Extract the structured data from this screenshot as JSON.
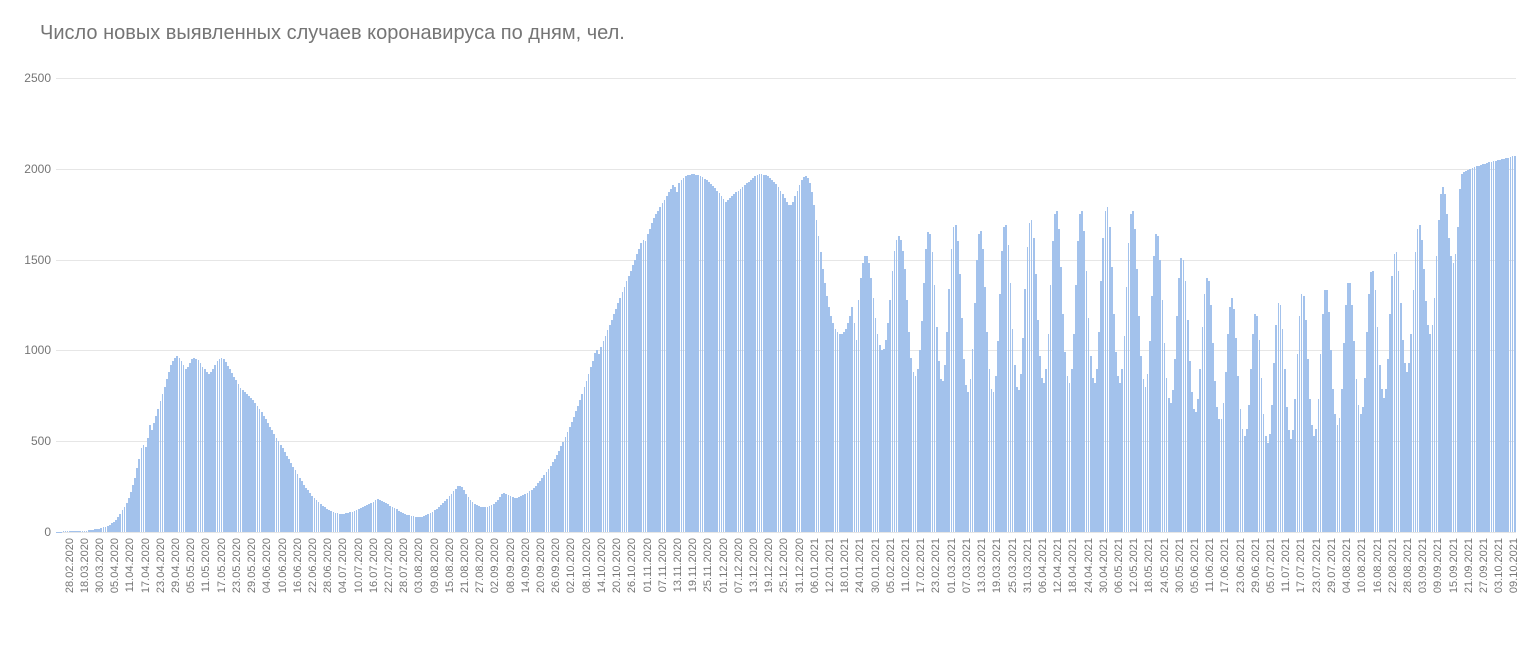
{
  "chart": {
    "type": "bar",
    "title": "Число новых выявленных случаев коронавируса по дням, чел.",
    "title_color": "#757575",
    "title_fontsize": 20,
    "background_color": "#ffffff",
    "grid_color": "#e6e6e6",
    "bar_color": "#a3c2ec",
    "axis_label_color": "#757575",
    "axis_fontsize": 12,
    "ylim": [
      0,
      2500
    ],
    "yticks": [
      0,
      500,
      1000,
      1500,
      2000,
      2500
    ],
    "x_tick_labels": [
      "28.02.2020",
      "18.03.2020",
      "30.03.2020",
      "05.04.2020",
      "11.04.2020",
      "17.04.2020",
      "23.04.2020",
      "29.04.2020",
      "05.05.2020",
      "11.05.2020",
      "17.05.2020",
      "23.05.2020",
      "29.05.2020",
      "04.06.2020",
      "10.06.2020",
      "16.06.2020",
      "22.06.2020",
      "28.06.2020",
      "04.07.2020",
      "10.07.2020",
      "16.07.2020",
      "22.07.2020",
      "28.07.2020",
      "03.08.2020",
      "09.08.2020",
      "15.08.2020",
      "21.08.2020",
      "27.08.2020",
      "02.09.2020",
      "08.09.2020",
      "14.09.2020",
      "20.09.2020",
      "26.09.2020",
      "02.10.2020",
      "08.10.2020",
      "14.10.2020",
      "20.10.2020",
      "26.10.2020",
      "01.11.2020",
      "07.11.2020",
      "13.11.2020",
      "19.11.2020",
      "25.11.2020",
      "01.12.2020",
      "07.12.2020",
      "13.12.2020",
      "19.12.2020",
      "25.12.2020",
      "31.12.2020",
      "06.01.2021",
      "12.01.2021",
      "18.01.2021",
      "24.01.2021",
      "30.01.2021",
      "05.02.2021",
      "11.02.2021",
      "17.02.2021",
      "23.02.2021",
      "01.03.2021",
      "07.03.2021",
      "13.03.2021",
      "19.03.2021",
      "25.03.2021",
      "31.03.2021",
      "06.04.2021",
      "12.04.2021",
      "18.04.2021",
      "24.04.2021",
      "30.04.2021",
      "06.05.2021",
      "12.05.2021",
      "18.05.2021",
      "24.05.2021",
      "30.05.2021",
      "05.06.2021",
      "11.06.2021",
      "17.06.2021",
      "23.06.2021",
      "29.06.2021",
      "05.07.2021",
      "11.07.2021",
      "17.07.2021",
      "23.07.2021",
      "29.07.2021",
      "04.08.2021",
      "10.08.2021",
      "16.08.2021",
      "22.08.2021",
      "28.08.2021",
      "03.09.2021",
      "09.09.2021",
      "15.09.2021",
      "21.09.2021",
      "27.09.2021",
      "03.10.2021",
      "09.10.2021"
    ],
    "values": [
      2,
      2,
      2,
      3,
      3,
      3,
      4,
      4,
      5,
      5,
      6,
      6,
      7,
      8,
      8,
      9,
      10,
      12,
      15,
      15,
      18,
      20,
      25,
      30,
      35,
      40,
      48,
      55,
      65,
      80,
      100,
      120,
      140,
      160,
      190,
      220,
      260,
      300,
      350,
      400,
      460,
      480,
      470,
      520,
      590,
      560,
      600,
      640,
      680,
      720,
      760,
      800,
      840,
      880,
      920,
      940,
      960,
      970,
      960,
      940,
      920,
      900,
      910,
      930,
      950,
      960,
      955,
      945,
      930,
      910,
      895,
      880,
      870,
      880,
      900,
      920,
      940,
      955,
      960,
      950,
      935,
      915,
      895,
      875,
      855,
      835,
      815,
      795,
      780,
      770,
      760,
      750,
      740,
      725,
      710,
      695,
      680,
      660,
      640,
      620,
      600,
      580,
      560,
      540,
      520,
      500,
      480,
      460,
      440,
      420,
      400,
      380,
      360,
      340,
      320,
      300,
      280,
      260,
      245,
      230,
      215,
      200,
      188,
      176,
      164,
      154,
      144,
      136,
      128,
      122,
      116,
      110,
      106,
      102,
      100,
      100,
      100,
      102,
      104,
      108,
      112,
      116,
      120,
      126,
      132,
      138,
      144,
      150,
      156,
      162,
      168,
      174,
      180,
      175,
      170,
      165,
      160,
      152,
      145,
      138,
      131,
      125,
      118,
      112,
      105,
      100,
      96,
      92,
      88,
      86,
      84,
      82,
      82,
      84,
      88,
      92,
      98,
      104,
      112,
      120,
      128,
      138,
      148,
      160,
      172,
      184,
      196,
      210,
      224,
      238,
      252,
      256,
      248,
      230,
      210,
      192,
      178,
      166,
      156,
      148,
      142,
      138,
      136,
      136,
      138,
      142,
      148,
      156,
      166,
      178,
      192,
      208,
      215,
      210,
      202,
      196,
      192,
      190,
      190,
      192,
      196,
      202,
      208,
      216,
      224,
      234,
      244,
      256,
      268,
      282,
      296,
      312,
      328,
      346,
      364,
      384,
      404,
      426,
      448,
      472,
      496,
      522,
      548,
      576,
      604,
      634,
      664,
      696,
      728,
      762,
      796,
      832,
      868,
      906,
      944,
      984,
      1000,
      980,
      1020,
      1050,
      1080,
      1110,
      1140,
      1170,
      1200,
      1230,
      1260,
      1290,
      1320,
      1350,
      1380,
      1410,
      1440,
      1470,
      1500,
      1530,
      1560,
      1590,
      1610,
      1600,
      1640,
      1670,
      1700,
      1730,
      1750,
      1770,
      1790,
      1810,
      1830,
      1850,
      1870,
      1890,
      1910,
      1900,
      1870,
      1920,
      1940,
      1950,
      1960,
      1965,
      1968,
      1970,
      1970,
      1968,
      1965,
      1960,
      1954,
      1946,
      1938,
      1928,
      1918,
      1906,
      1894,
      1880,
      1866,
      1850,
      1834,
      1820,
      1830,
      1840,
      1850,
      1860,
      1870,
      1880,
      1890,
      1900,
      1910,
      1920,
      1930,
      1940,
      1950,
      1960,
      1965,
      1970,
      1970,
      1968,
      1964,
      1958,
      1950,
      1940,
      1928,
      1914,
      1898,
      1880,
      1860,
      1840,
      1820,
      1800,
      1800,
      1820,
      1850,
      1880,
      1910,
      1940,
      1955,
      1960,
      1950,
      1920,
      1870,
      1800,
      1720,
      1630,
      1540,
      1450,
      1370,
      1300,
      1240,
      1190,
      1150,
      1120,
      1100,
      1090,
      1090,
      1100,
      1120,
      1150,
      1190,
      1240,
      1150,
      1060,
      1280,
      1400,
      1480,
      1520,
      1520,
      1480,
      1400,
      1290,
      1180,
      1090,
      1030,
      1000,
      1010,
      1060,
      1150,
      1280,
      1440,
      1550,
      1610,
      1630,
      1610,
      1550,
      1450,
      1280,
      1100,
      960,
      880,
      860,
      900,
      1000,
      1160,
      1370,
      1560,
      1650,
      1640,
      1540,
      1360,
      1130,
      940,
      840,
      830,
      920,
      1100,
      1340,
      1560,
      1680,
      1690,
      1600,
      1420,
      1180,
      950,
      810,
      770,
      840,
      1010,
      1260,
      1500,
      1640,
      1660,
      1560,
      1350,
      1100,
      900,
      790,
      770,
      860,
      1050,
      1310,
      1550,
      1680,
      1690,
      1580,
      1370,
      1120,
      920,
      800,
      780,
      870,
      1070,
      1340,
      1570,
      1700,
      1720,
      1620,
      1420,
      1170,
      970,
      850,
      820,
      900,
      1090,
      1360,
      1600,
      1750,
      1770,
      1670,
      1460,
      1200,
      990,
      860,
      820,
      900,
      1090,
      1360,
      1600,
      1750,
      1770,
      1660,
      1440,
      1180,
      970,
      850,
      820,
      900,
      1100,
      1380,
      1620,
      1770,
      1790,
      1680,
      1460,
      1200,
      990,
      860,
      820,
      900,
      1080,
      1350,
      1590,
      1750,
      1770,
      1670,
      1450,
      1190,
      970,
      840,
      800,
      870,
      1050,
      1300,
      1520,
      1640,
      1630,
      1500,
      1280,
      1040,
      850,
      740,
      710,
      780,
      950,
      1190,
      1400,
      1510,
      1500,
      1380,
      1170,
      940,
      770,
      680,
      660,
      730,
      900,
      1130,
      1310,
      1400,
      1380,
      1250,
      1040,
      830,
      690,
      620,
      620,
      710,
      880,
      1090,
      1240,
      1290,
      1230,
      1070,
      860,
      680,
      570,
      530,
      570,
      700,
      900,
      1090,
      1200,
      1190,
      1060,
      850,
      650,
      530,
      490,
      540,
      700,
      930,
      1140,
      1260,
      1250,
      1120,
      900,
      690,
      560,
      510,
      560,
      730,
      980,
      1190,
      1310,
      1300,
      1170,
      950,
      730,
      590,
      530,
      570,
      730,
      980,
      1200,
      1330,
      1330,
      1210,
      1000,
      790,
      650,
      590,
      630,
      790,
      1040,
      1250,
      1370,
      1370,
      1250,
      1050,
      840,
      700,
      650,
      690,
      850,
      1100,
      1310,
      1430,
      1440,
      1330,
      1130,
      920,
      790,
      740,
      790,
      950,
      1200,
      1410,
      1530,
      1540,
      1440,
      1260,
      1060,
      930,
      880,
      930,
      1090,
      1330,
      1540,
      1670,
      1690,
      1610,
      1450,
      1270,
      1140,
      1090,
      1140,
      1290,
      1520,
      1720,
      1860,
      1900,
      1860,
      1750,
      1620,
      1520,
      1480,
      1530,
      1680,
      1890,
      1970,
      1980,
      1990,
      1996,
      2000,
      2005,
      2010,
      2014,
      2018,
      2022,
      2026,
      2029,
      2032,
      2035,
      2038,
      2041,
      2044,
      2047,
      2050,
      2053,
      2056,
      2059,
      2062,
      2065,
      2068,
      2070
    ]
  }
}
